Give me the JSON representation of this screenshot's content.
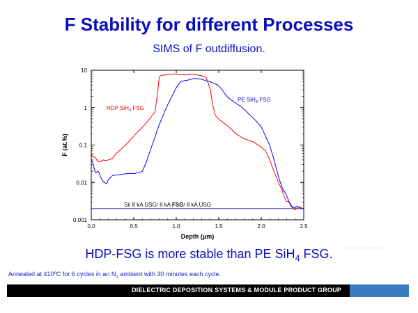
{
  "header": {
    "title": "F Stability for different Processes",
    "subtitle": "SIMS of F outdiffusion."
  },
  "chart_data": {
    "type": "line",
    "xlabel": "Depth (μm)",
    "ylabel": "F (at.%)",
    "xlim": [
      0,
      2.5
    ],
    "ylim": [
      0.001,
      10
    ],
    "yscale": "log",
    "xticks": [
      "0.0",
      "0.5",
      "1.0",
      "1.5",
      "2.0",
      "2.5"
    ],
    "yticks": [
      "0.001",
      "0.01",
      "0.1",
      "1",
      "10"
    ],
    "grid": false,
    "series": [
      {
        "name": "HDP SiH4 FSG",
        "color": "#ff0000",
        "x": [
          0.0,
          0.03,
          0.05,
          0.08,
          0.12,
          0.2,
          0.25,
          0.3,
          0.4,
          0.5,
          0.6,
          0.7,
          0.75,
          0.78,
          0.8,
          0.83,
          0.9,
          1.0,
          1.1,
          1.2,
          1.3,
          1.35,
          1.4,
          1.43,
          1.46,
          1.5,
          1.6,
          1.7,
          1.8,
          1.9,
          2.0,
          2.05,
          2.1,
          2.15,
          2.2,
          2.25,
          2.3,
          2.35,
          2.4,
          2.45,
          2.5
        ],
        "y": [
          0.06,
          0.05,
          0.04,
          0.04,
          0.035,
          0.04,
          0.045,
          0.06,
          0.1,
          0.17,
          0.3,
          0.55,
          0.75,
          2.5,
          6.5,
          7.5,
          7.7,
          7.8,
          7.7,
          7.6,
          7.2,
          6.5,
          3,
          1.2,
          0.6,
          0.5,
          0.33,
          0.2,
          0.15,
          0.12,
          0.09,
          0.07,
          0.04,
          0.02,
          0.01,
          0.006,
          0.003,
          0.0025,
          0.002,
          0.002,
          0.0021
        ]
      },
      {
        "name": "PE SiH4 FSG",
        "color": "#0000ff",
        "x": [
          0.0,
          0.02,
          0.05,
          0.08,
          0.1,
          0.15,
          0.18,
          0.2,
          0.25,
          0.3,
          0.4,
          0.5,
          0.6,
          0.65,
          0.7,
          0.8,
          0.9,
          1.0,
          1.05,
          1.1,
          1.2,
          1.3,
          1.4,
          1.5,
          1.6,
          1.7,
          1.8,
          1.9,
          2.0,
          2.1,
          2.15,
          2.2,
          2.25,
          2.3,
          2.35,
          2.4,
          2.45,
          2.5
        ],
        "y": [
          0.04,
          0.03,
          0.02,
          0.018,
          0.017,
          0.01,
          0.009,
          0.012,
          0.015,
          0.016,
          0.017,
          0.017,
          0.02,
          0.035,
          0.08,
          0.35,
          1.2,
          3.5,
          4.8,
          5.4,
          5.9,
          5.7,
          5.0,
          3.8,
          2.0,
          1.3,
          0.9,
          0.55,
          0.3,
          0.1,
          0.04,
          0.015,
          0.007,
          0.004,
          0.0025,
          0.002,
          0.0022,
          0.0021
        ]
      }
    ],
    "reference_line": {
      "y": 0.002,
      "color": "#1a1a8c",
      "label_prefix": "Si/ 8 kA USG/ 6 kA ",
      "label_bold": "FSG",
      "label_suffix": "/ 8 kA USG"
    },
    "annotations": {
      "hdp_text": "HDP SiH",
      "hdp_sub": "4",
      "hdp_tail": " FSG",
      "pe_text": "PE SiH",
      "pe_sub": "4",
      "pe_tail": " FSG"
    }
  },
  "conclusion": {
    "text_a": "HDP-FSG is more stable than PE SiH",
    "sub": "4",
    "text_b": " FSG."
  },
  "footnote": {
    "text_a": "Annealed at 410ºC for 6 cycles in an N",
    "sub": "2",
    "text_b": " ambient with 30 minutes each cycle."
  },
  "footer": {
    "text": "DIELECTRIC DEPOSITION SYSTEMS & MODULE PRODUCT GROUP"
  },
  "watermark": {
    "text": "Applied Materials"
  }
}
